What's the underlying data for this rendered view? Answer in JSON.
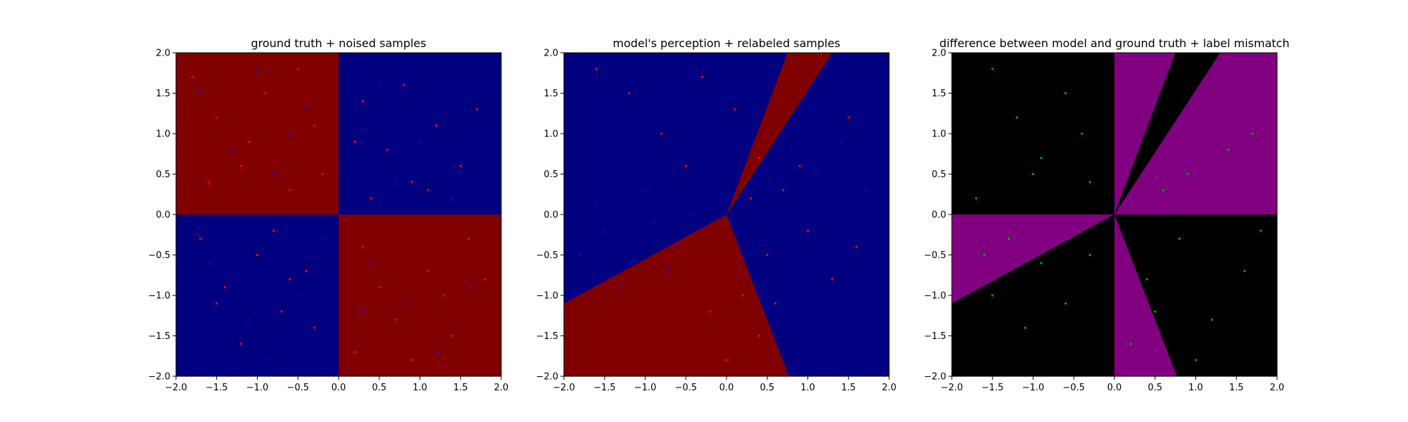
{
  "colors": {
    "red_region": "#800000",
    "blue_region": "#000080",
    "black_region": "#000000",
    "purple_region": "#800080",
    "red_point": "#ff0000",
    "blue_point": "#0000ff",
    "green_point": "#00aa00"
  },
  "chart_data": [
    {
      "type": "scatter",
      "title": "ground truth + noised samples",
      "xlim": [
        -2,
        2
      ],
      "ylim": [
        -2,
        2
      ],
      "xticks": [
        "−2.0",
        "−1.5",
        "−1.0",
        "−0.5",
        "0.0",
        "0.5",
        "1.0",
        "1.5",
        "2.0"
      ],
      "yticks": [
        "−2.0",
        "−1.5",
        "−1.0",
        "−0.5",
        "0.0",
        "0.5",
        "1.0",
        "1.5",
        "2.0"
      ],
      "background": "quadrants: x*y<0 red, x*y>0 blue",
      "series": [
        {
          "color": "#ff0000",
          "points": [
            [
              -1.8,
              1.7
            ],
            [
              -1.5,
              1.2
            ],
            [
              -1.2,
              0.6
            ],
            [
              -0.9,
              1.5
            ],
            [
              -0.6,
              0.3
            ],
            [
              -0.3,
              1.1
            ],
            [
              -1.6,
              0.4
            ],
            [
              -0.5,
              1.8
            ],
            [
              -1.1,
              0.9
            ],
            [
              -0.2,
              0.5
            ],
            [
              0.3,
              1.4
            ],
            [
              0.6,
              0.8
            ],
            [
              0.9,
              0.4
            ],
            [
              1.2,
              1.1
            ],
            [
              1.5,
              0.6
            ],
            [
              0.4,
              0.2
            ],
            [
              0.8,
              1.6
            ],
            [
              1.1,
              0.3
            ],
            [
              1.7,
              1.3
            ],
            [
              0.2,
              0.9
            ],
            [
              -1.7,
              -0.3
            ],
            [
              -1.4,
              -0.9
            ],
            [
              -1.0,
              -0.5
            ],
            [
              -0.7,
              -1.2
            ],
            [
              -0.4,
              -0.7
            ],
            [
              -1.2,
              -1.6
            ],
            [
              -0.8,
              -0.2
            ],
            [
              -0.3,
              -1.4
            ],
            [
              -1.5,
              -1.1
            ],
            [
              -0.6,
              -0.8
            ],
            [
              0.3,
              -0.4
            ],
            [
              0.7,
              -1.3
            ],
            [
              1.1,
              -0.7
            ],
            [
              1.4,
              -1.5
            ],
            [
              0.5,
              -0.9
            ],
            [
              0.9,
              -1.8
            ],
            [
              1.6,
              -0.3
            ],
            [
              0.2,
              -1.7
            ],
            [
              1.3,
              -1.0
            ],
            [
              1.8,
              -0.8
            ]
          ]
        },
        {
          "color": "#0000ff",
          "points": [
            [
              -1.7,
              1.5
            ],
            [
              -1.3,
              0.8
            ],
            [
              -0.8,
              0.5
            ],
            [
              -0.4,
              1.3
            ],
            [
              -1.0,
              1.8
            ],
            [
              -0.6,
              1.0
            ],
            [
              0.5,
              1.6
            ],
            [
              1.0,
              0.9
            ],
            [
              1.4,
              0.2
            ],
            [
              0.7,
              0.4
            ],
            [
              -1.6,
              -0.6
            ],
            [
              -1.1,
              -1.3
            ],
            [
              -0.5,
              -1.0
            ],
            [
              -0.9,
              -1.8
            ],
            [
              -0.2,
              -0.3
            ],
            [
              0.4,
              -0.6
            ],
            [
              0.8,
              -1.1
            ],
            [
              1.2,
              -1.7
            ],
            [
              1.6,
              -0.9
            ],
            [
              0.3,
              -1.2
            ]
          ]
        }
      ]
    },
    {
      "type": "scatter",
      "title": "model's perception + relabeled samples",
      "xlim": [
        -2,
        2
      ],
      "ylim": [
        -2,
        2
      ],
      "xticks": [
        "−2.0",
        "−1.5",
        "−1.0",
        "−0.5",
        "0.0",
        "0.5",
        "1.0",
        "1.5",
        "2.0"
      ],
      "yticks": [
        "−2.0",
        "−1.5",
        "−1.0",
        "−0.5",
        "0.0",
        "0.5",
        "1.0",
        "1.5",
        "2.0"
      ],
      "background": "blue with two red wedges from origin",
      "series": [
        {
          "color": "#ff0000",
          "points": [
            [
              -1.2,
              1.5
            ],
            [
              -0.8,
              1.0
            ],
            [
              -0.5,
              0.6
            ],
            [
              -0.3,
              1.7
            ],
            [
              0.1,
              1.3
            ],
            [
              0.4,
              0.7
            ],
            [
              0.7,
              0.3
            ],
            [
              1.0,
              -0.2
            ],
            [
              1.3,
              -0.8
            ],
            [
              1.6,
              -0.4
            ],
            [
              0.5,
              -0.5
            ],
            [
              0.2,
              -1.0
            ],
            [
              0.4,
              -1.5
            ],
            [
              0.0,
              -1.8
            ],
            [
              -0.2,
              -1.2
            ],
            [
              0.6,
              -1.1
            ],
            [
              0.9,
              0.6
            ],
            [
              1.5,
              1.2
            ],
            [
              -1.6,
              1.8
            ],
            [
              0.3,
              0.2
            ]
          ]
        },
        {
          "color": "#0000ff",
          "points": [
            [
              -1.8,
              -0.5
            ],
            [
              -1.5,
              -0.2
            ],
            [
              -1.2,
              -0.6
            ],
            [
              -0.9,
              -0.1
            ],
            [
              -0.6,
              -0.4
            ],
            [
              -0.4,
              0.0
            ],
            [
              -1.6,
              0.1
            ],
            [
              -1.0,
              0.3
            ],
            [
              -0.7,
              -0.7
            ],
            [
              -1.3,
              -0.9
            ],
            [
              1.1,
              0.5
            ],
            [
              1.4,
              0.9
            ],
            [
              1.7,
              0.3
            ],
            [
              0.8,
              0.8
            ]
          ]
        }
      ]
    },
    {
      "type": "scatter",
      "title": "difference between model and ground truth + label mismatch",
      "xlim": [
        -2,
        2
      ],
      "ylim": [
        -2,
        2
      ],
      "xticks": [
        "−2.0",
        "−1.5",
        "−1.0",
        "−0.5",
        "0.0",
        "0.5",
        "1.0",
        "1.5",
        "2.0"
      ],
      "yticks": [
        "−2.0",
        "−1.5",
        "−1.0",
        "−0.5",
        "0.0",
        "0.5",
        "1.0",
        "1.5",
        "2.0"
      ],
      "background": "black with purple wedges where model disagrees",
      "series": [
        {
          "color": "#00aa00",
          "points": [
            [
              -1.5,
              1.8
            ],
            [
              -1.2,
              1.2
            ],
            [
              -0.9,
              0.7
            ],
            [
              -0.6,
              1.5
            ],
            [
              -0.3,
              0.4
            ],
            [
              -1.0,
              0.5
            ],
            [
              -0.4,
              1.0
            ],
            [
              -1.7,
              0.2
            ],
            [
              0.9,
              0.5
            ],
            [
              1.4,
              0.8
            ],
            [
              1.7,
              1.0
            ],
            [
              0.6,
              0.3
            ],
            [
              -1.6,
              -0.5
            ],
            [
              -1.3,
              -0.3
            ],
            [
              -0.9,
              -0.6
            ],
            [
              -0.6,
              -1.1
            ],
            [
              -0.3,
              -0.5
            ],
            [
              -1.1,
              -1.4
            ],
            [
              -1.5,
              -1.0
            ],
            [
              0.4,
              -0.8
            ],
            [
              0.8,
              -0.3
            ],
            [
              1.2,
              -1.3
            ],
            [
              1.6,
              -0.7
            ],
            [
              0.2,
              -1.6
            ],
            [
              1.0,
              -1.8
            ],
            [
              0.5,
              -1.2
            ],
            [
              1.8,
              -0.2
            ]
          ]
        }
      ]
    }
  ]
}
